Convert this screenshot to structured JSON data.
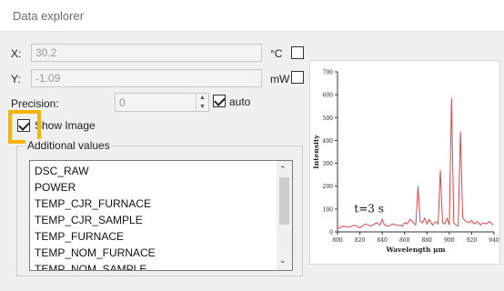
{
  "window": {
    "title": "Data explorer"
  },
  "x": {
    "label": "X:",
    "value": "30.2",
    "unit": "°C"
  },
  "y": {
    "label": "Y:",
    "value": "-1.09",
    "unit": "mW"
  },
  "precision": {
    "label": "Precision:",
    "value": "0",
    "auto_label": "auto",
    "auto_checked": true
  },
  "show_image": {
    "label": "Show Image",
    "checked": true
  },
  "additional": {
    "title": "Additional values",
    "items": [
      "DSC_RAW",
      "POWER",
      "TEMP_CJR_FURNACE",
      "TEMP_CJR_SAMPLE",
      "TEMP_FURNACE",
      "TEMP_NOM_FURNACE",
      "TEMP_NOM_SAMPLE"
    ]
  },
  "chart_data": {
    "type": "line",
    "title": "",
    "xlabel": "Wavelength μm",
    "ylabel": "Intensity",
    "annotation": "t=3 s",
    "xlim": [
      800,
      940
    ],
    "ylim": [
      0,
      700
    ],
    "xticks": [
      "800",
      "820",
      "840",
      "860",
      "880",
      "900",
      "920",
      "940"
    ],
    "yticks": [
      "0",
      "100",
      "200",
      "300",
      "400",
      "500",
      "600",
      "700"
    ],
    "series": [
      {
        "color": "#d94a4a",
        "x": [
          801,
          805,
          810,
          815,
          820,
          825,
          830,
          835,
          838,
          840,
          842,
          845,
          850,
          853,
          856,
          858,
          860,
          862,
          865,
          868,
          870,
          872,
          874,
          876,
          878,
          880,
          882,
          885,
          888,
          890,
          892,
          894,
          896,
          898,
          900,
          902,
          904,
          906,
          908,
          910,
          912,
          915,
          918,
          920,
          922,
          925,
          928,
          930,
          933,
          936,
          939
        ],
        "y": [
          15,
          25,
          20,
          30,
          18,
          35,
          25,
          40,
          30,
          55,
          30,
          25,
          35,
          28,
          30,
          25,
          40,
          35,
          55,
          40,
          30,
          200,
          45,
          40,
          60,
          35,
          55,
          30,
          45,
          35,
          270,
          40,
          35,
          60,
          30,
          585,
          40,
          30,
          25,
          440,
          60,
          45,
          40,
          50,
          35,
          45,
          30,
          40,
          35,
          45,
          30
        ]
      }
    ]
  }
}
